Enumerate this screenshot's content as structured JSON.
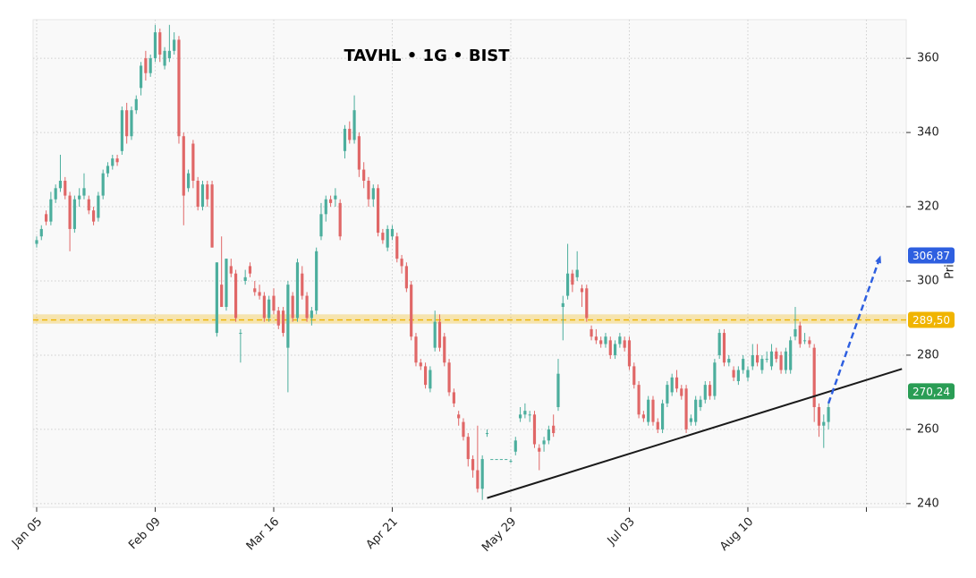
{
  "chart_data": {
    "type": "candlestick",
    "title": "TAVHL • 1G • BIST",
    "y_label": "Price",
    "up_color": "#4cae9d",
    "down_color": "#e06767",
    "categories": [
      "Jan 05",
      null,
      null,
      null,
      null,
      null,
      null,
      null,
      null,
      null,
      null,
      null,
      null,
      null,
      null,
      null,
      null,
      null,
      null,
      null,
      null,
      null,
      null,
      null,
      null,
      "Feb 09",
      null,
      null,
      null,
      null,
      null,
      null,
      null,
      null,
      null,
      null,
      null,
      null,
      null,
      null,
      null,
      null,
      null,
      null,
      null,
      null,
      null,
      null,
      null,
      null,
      "Mar 16",
      null,
      null,
      null,
      null,
      null,
      null,
      null,
      null,
      null,
      null,
      null,
      null,
      null,
      null,
      null,
      null,
      null,
      null,
      null,
      null,
      null,
      null,
      null,
      null,
      "Apr 21",
      null,
      null,
      null,
      null,
      null,
      null,
      null,
      null,
      null,
      null,
      null,
      null,
      null,
      null,
      null,
      null,
      null,
      null,
      null,
      null,
      null,
      null,
      null,
      null,
      "May 29",
      null,
      null,
      null,
      null,
      null,
      null,
      null,
      null,
      null,
      null,
      null,
      null,
      null,
      null,
      null,
      null,
      null,
      null,
      null,
      null,
      null,
      null,
      null,
      null,
      "Jul 03",
      null,
      null,
      null,
      null,
      null,
      null,
      null,
      null,
      null,
      null,
      null,
      null,
      null,
      null,
      null,
      null,
      null,
      null,
      null,
      null,
      null,
      null,
      null,
      null,
      "Aug 10",
      null,
      null,
      null,
      null,
      null,
      null,
      null,
      null,
      null,
      null,
      null,
      null,
      null,
      null,
      null,
      null
    ],
    "candles": [
      [
        310,
        312,
        309,
        311
      ],
      [
        312,
        315,
        311,
        314
      ],
      [
        318,
        319,
        315,
        316
      ],
      [
        316,
        324,
        315,
        322
      ],
      [
        322,
        326,
        321,
        325
      ],
      [
        325,
        334,
        324,
        327
      ],
      [
        327,
        328,
        322,
        323
      ],
      [
        323,
        324,
        308,
        314
      ],
      [
        314,
        323,
        313,
        322
      ],
      [
        322,
        325,
        320,
        323
      ],
      [
        323,
        329,
        322,
        325
      ],
      [
        322,
        323,
        318,
        319
      ],
      [
        319,
        320,
        315,
        316
      ],
      [
        317,
        324,
        316,
        323
      ],
      [
        323,
        330,
        322,
        329
      ],
      [
        329,
        332,
        328,
        331
      ],
      [
        331,
        334,
        330,
        333
      ],
      [
        333,
        334,
        331,
        332
      ],
      [
        335,
        347,
        334,
        346
      ],
      [
        346,
        348,
        337,
        339
      ],
      [
        339,
        347,
        338,
        346
      ],
      [
        346,
        350,
        345,
        349
      ],
      [
        352,
        359,
        350,
        358
      ],
      [
        360,
        362,
        354,
        356
      ],
      [
        356,
        361,
        355,
        360
      ],
      [
        360,
        369,
        359,
        367
      ],
      [
        367,
        368,
        359,
        361
      ],
      [
        358,
        363,
        357,
        362
      ],
      [
        360,
        369,
        359,
        362
      ],
      [
        362,
        367,
        361,
        365
      ],
      [
        365,
        366,
        337,
        339
      ],
      [
        339,
        340,
        315,
        323
      ],
      [
        325,
        330,
        324,
        329
      ],
      [
        337,
        338,
        325,
        327
      ],
      [
        327,
        328,
        319,
        320
      ],
      [
        320,
        327,
        319,
        326
      ],
      [
        326,
        327,
        320,
        322
      ],
      [
        326,
        327,
        309,
        309
      ],
      [
        286,
        305,
        285,
        305
      ],
      [
        299,
        312,
        293,
        293
      ],
      [
        293,
        306,
        292,
        306
      ],
      [
        304,
        306,
        301,
        302
      ],
      [
        302,
        303,
        289,
        290
      ],
      [
        286,
        287,
        278,
        286
      ],
      [
        300,
        303,
        299,
        301
      ],
      [
        304,
        305,
        301,
        302
      ],
      [
        298,
        300,
        296,
        297
      ],
      [
        297,
        299,
        295,
        296
      ],
      [
        296,
        297,
        289,
        290
      ],
      [
        290,
        296,
        289,
        295
      ],
      [
        296,
        298,
        291,
        292
      ],
      [
        292,
        293,
        287,
        288
      ],
      [
        292,
        293,
        285,
        286
      ],
      [
        282,
        300,
        270,
        299
      ],
      [
        296,
        297,
        289,
        290
      ],
      [
        290,
        306,
        289,
        305
      ],
      [
        302,
        304,
        295,
        296
      ],
      [
        296,
        297,
        289,
        290
      ],
      [
        290,
        293,
        288,
        292
      ],
      [
        292,
        309,
        291,
        308
      ],
      [
        312,
        321,
        311,
        318
      ],
      [
        318,
        323,
        316,
        322
      ],
      [
        322,
        323,
        320,
        321
      ],
      [
        322,
        325,
        320,
        323
      ],
      [
        321,
        322,
        311,
        312
      ],
      [
        335,
        342,
        333,
        341
      ],
      [
        341,
        343,
        337,
        338
      ],
      [
        338,
        350,
        337,
        346
      ],
      [
        339,
        340,
        328,
        330
      ],
      [
        330,
        332,
        325,
        327
      ],
      [
        327,
        328,
        320,
        322
      ],
      [
        322,
        326,
        320,
        325
      ],
      [
        325,
        326,
        312,
        313
      ],
      [
        313,
        314,
        310,
        311
      ],
      [
        309,
        315,
        308,
        314
      ],
      [
        312,
        315,
        311,
        314
      ],
      [
        312,
        313,
        305,
        306
      ],
      [
        306,
        307,
        302,
        304
      ],
      [
        304,
        305,
        297,
        298
      ],
      [
        299,
        300,
        284,
        285
      ],
      [
        285,
        286,
        277,
        278
      ],
      [
        278,
        279,
        276,
        277
      ],
      [
        277,
        278,
        271,
        272
      ],
      [
        271,
        277,
        270,
        276
      ],
      [
        282,
        292,
        281,
        289
      ],
      [
        289,
        291,
        281,
        282
      ],
      [
        285,
        286,
        277,
        278
      ],
      [
        278,
        279,
        269,
        270
      ],
      [
        270,
        271,
        266,
        267
      ],
      [
        264,
        265,
        261,
        263
      ],
      [
        262,
        263,
        257,
        258
      ],
      [
        258,
        259,
        250,
        252
      ],
      [
        252,
        253,
        247,
        249
      ],
      [
        249,
        261,
        243,
        244
      ],
      [
        244,
        253,
        241,
        252
      ],
      [
        259,
        260,
        258,
        259
      ],
      [
        252,
        252,
        252,
        252
      ],
      [
        252,
        252,
        252,
        252
      ],
      [
        252,
        252,
        252,
        252
      ],
      [
        252,
        252,
        252,
        252
      ],
      [
        251.5,
        252,
        251,
        251.5
      ],
      [
        254,
        258,
        253,
        257
      ],
      [
        263,
        266,
        262,
        264
      ],
      [
        264,
        267,
        263,
        265
      ],
      [
        264,
        265,
        262,
        264
      ],
      [
        264,
        265,
        255,
        256
      ],
      [
        255,
        256,
        249,
        254
      ],
      [
        256,
        258,
        254,
        257
      ],
      [
        257,
        261,
        256,
        260
      ],
      [
        261,
        264,
        258,
        259
      ],
      [
        266,
        279,
        265,
        275
      ],
      [
        293,
        296,
        284,
        294
      ],
      [
        296,
        310,
        295,
        302
      ],
      [
        302,
        303,
        297,
        299
      ],
      [
        301,
        308,
        300,
        303
      ],
      [
        298,
        299,
        293,
        297
      ],
      [
        298,
        299,
        289,
        290
      ],
      [
        287,
        288,
        284,
        285
      ],
      [
        285,
        287,
        283,
        284
      ],
      [
        284,
        285,
        282,
        283
      ],
      [
        283,
        286,
        282,
        285
      ],
      [
        284,
        285,
        279,
        280
      ],
      [
        280,
        284,
        279,
        283
      ],
      [
        283,
        286,
        282,
        285
      ],
      [
        284,
        285,
        281,
        282
      ],
      [
        284,
        285,
        276,
        277
      ],
      [
        277,
        278,
        271,
        272
      ],
      [
        272,
        273,
        263,
        264
      ],
      [
        264,
        265,
        262,
        263
      ],
      [
        262,
        269,
        261,
        268
      ],
      [
        268,
        269,
        261,
        262
      ],
      [
        262,
        263,
        259,
        260
      ],
      [
        260,
        268,
        259,
        267
      ],
      [
        267,
        273,
        266,
        272
      ],
      [
        270,
        275,
        269,
        274
      ],
      [
        274,
        276,
        270,
        271
      ],
      [
        271,
        272,
        268,
        269
      ],
      [
        271,
        272,
        259,
        260
      ],
      [
        262,
        264,
        261,
        263
      ],
      [
        262,
        269,
        261,
        268
      ],
      [
        266,
        269,
        265,
        268
      ],
      [
        268,
        273,
        267,
        272
      ],
      [
        272,
        273,
        268,
        269
      ],
      [
        269,
        279,
        268,
        278
      ],
      [
        280,
        287,
        279,
        286
      ],
      [
        286,
        287,
        277,
        278
      ],
      [
        278,
        280,
        277,
        279
      ],
      [
        276,
        277,
        273,
        274
      ],
      [
        273,
        277,
        272,
        276
      ],
      [
        276,
        280,
        275,
        279
      ],
      [
        274,
        277,
        273,
        276
      ],
      [
        277,
        283,
        276,
        280
      ],
      [
        280,
        283,
        277,
        278
      ],
      [
        276,
        280,
        275,
        279
      ],
      [
        279,
        281,
        278,
        279
      ],
      [
        277,
        283,
        276,
        281
      ],
      [
        281,
        282,
        278,
        279
      ],
      [
        280,
        281,
        275,
        276
      ],
      [
        276,
        282,
        275,
        281
      ],
      [
        276,
        285,
        275,
        284
      ],
      [
        285,
        293,
        284,
        287
      ],
      [
        288,
        289,
        282,
        283
      ],
      [
        284,
        286,
        283,
        284
      ],
      [
        284,
        285,
        282,
        283
      ],
      [
        282,
        283,
        262,
        266
      ],
      [
        266,
        267,
        258,
        261
      ],
      [
        261,
        264,
        255,
        262
      ],
      [
        262,
        267,
        260,
        266
      ]
    ],
    "xlim": [
      -0.75,
      183.4
    ],
    "xticks": [
      0,
      25,
      50,
      75,
      100,
      125,
      150,
      175
    ],
    "ylim": [
      239,
      370.4
    ],
    "yticks": [
      240,
      260,
      280,
      300,
      320,
      340,
      360
    ],
    "grid": true,
    "level": {
      "value": 289.5,
      "band": [
        288.5,
        291
      ],
      "color": "#f0b400",
      "label": "289,50"
    },
    "trendline": {
      "x": [
        95,
        182.5
      ],
      "y": [
        241.5,
        276.3
      ],
      "color": "#1a1a1a"
    },
    "trend_value": {
      "value": 270.24,
      "label": "270,24",
      "color": "#2a9d55"
    },
    "projection": {
      "x": [
        167,
        178
      ],
      "y": [
        267,
        306.87
      ],
      "color": "#2e5fe0",
      "label": "306,87"
    }
  }
}
